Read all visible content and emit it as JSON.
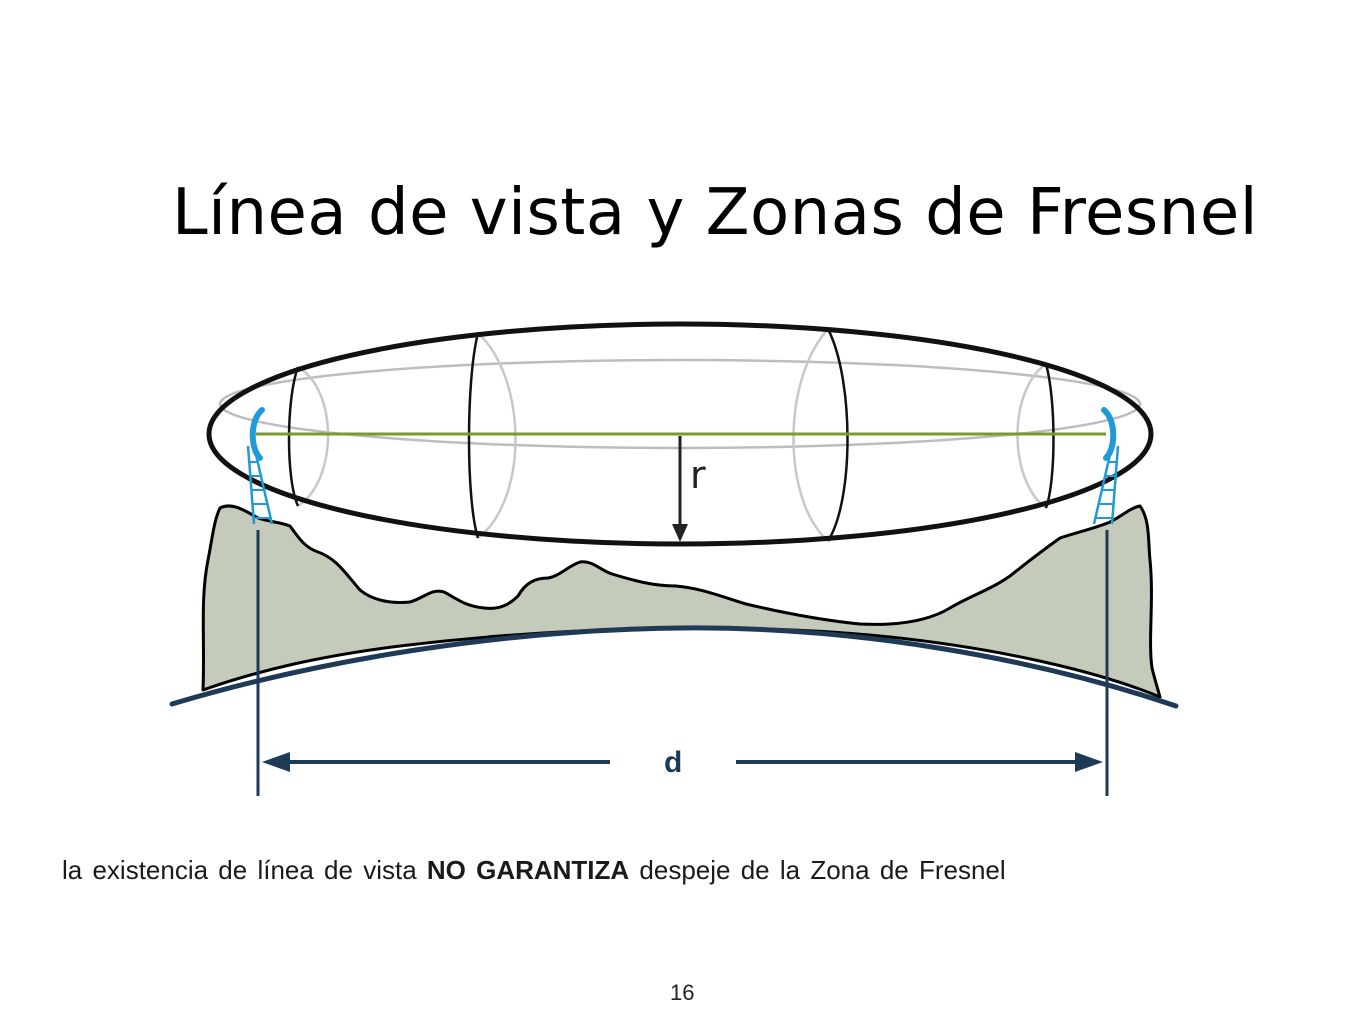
{
  "slide": {
    "title": "Línea de vista y Zonas de Fresnel",
    "page_number": "16"
  },
  "diagram": {
    "radius_label": "r",
    "distance_label": "d",
    "colors": {
      "ellipse_outline": "#111111",
      "inner_lines": "#bdbdbd",
      "line_of_sight": "#7a9a2e",
      "terrain_fill": "#c4cbbb",
      "terrain_outline": "#000000",
      "earth_curve": "#1e3a57",
      "antenna": "#1f9ad6",
      "dimension_lines": "#1e3a57"
    }
  },
  "caption": {
    "before": "la existencia de línea de vista ",
    "emphasis": "NO GARANTIZA",
    "after": " despeje de la Zona de Fresnel"
  }
}
